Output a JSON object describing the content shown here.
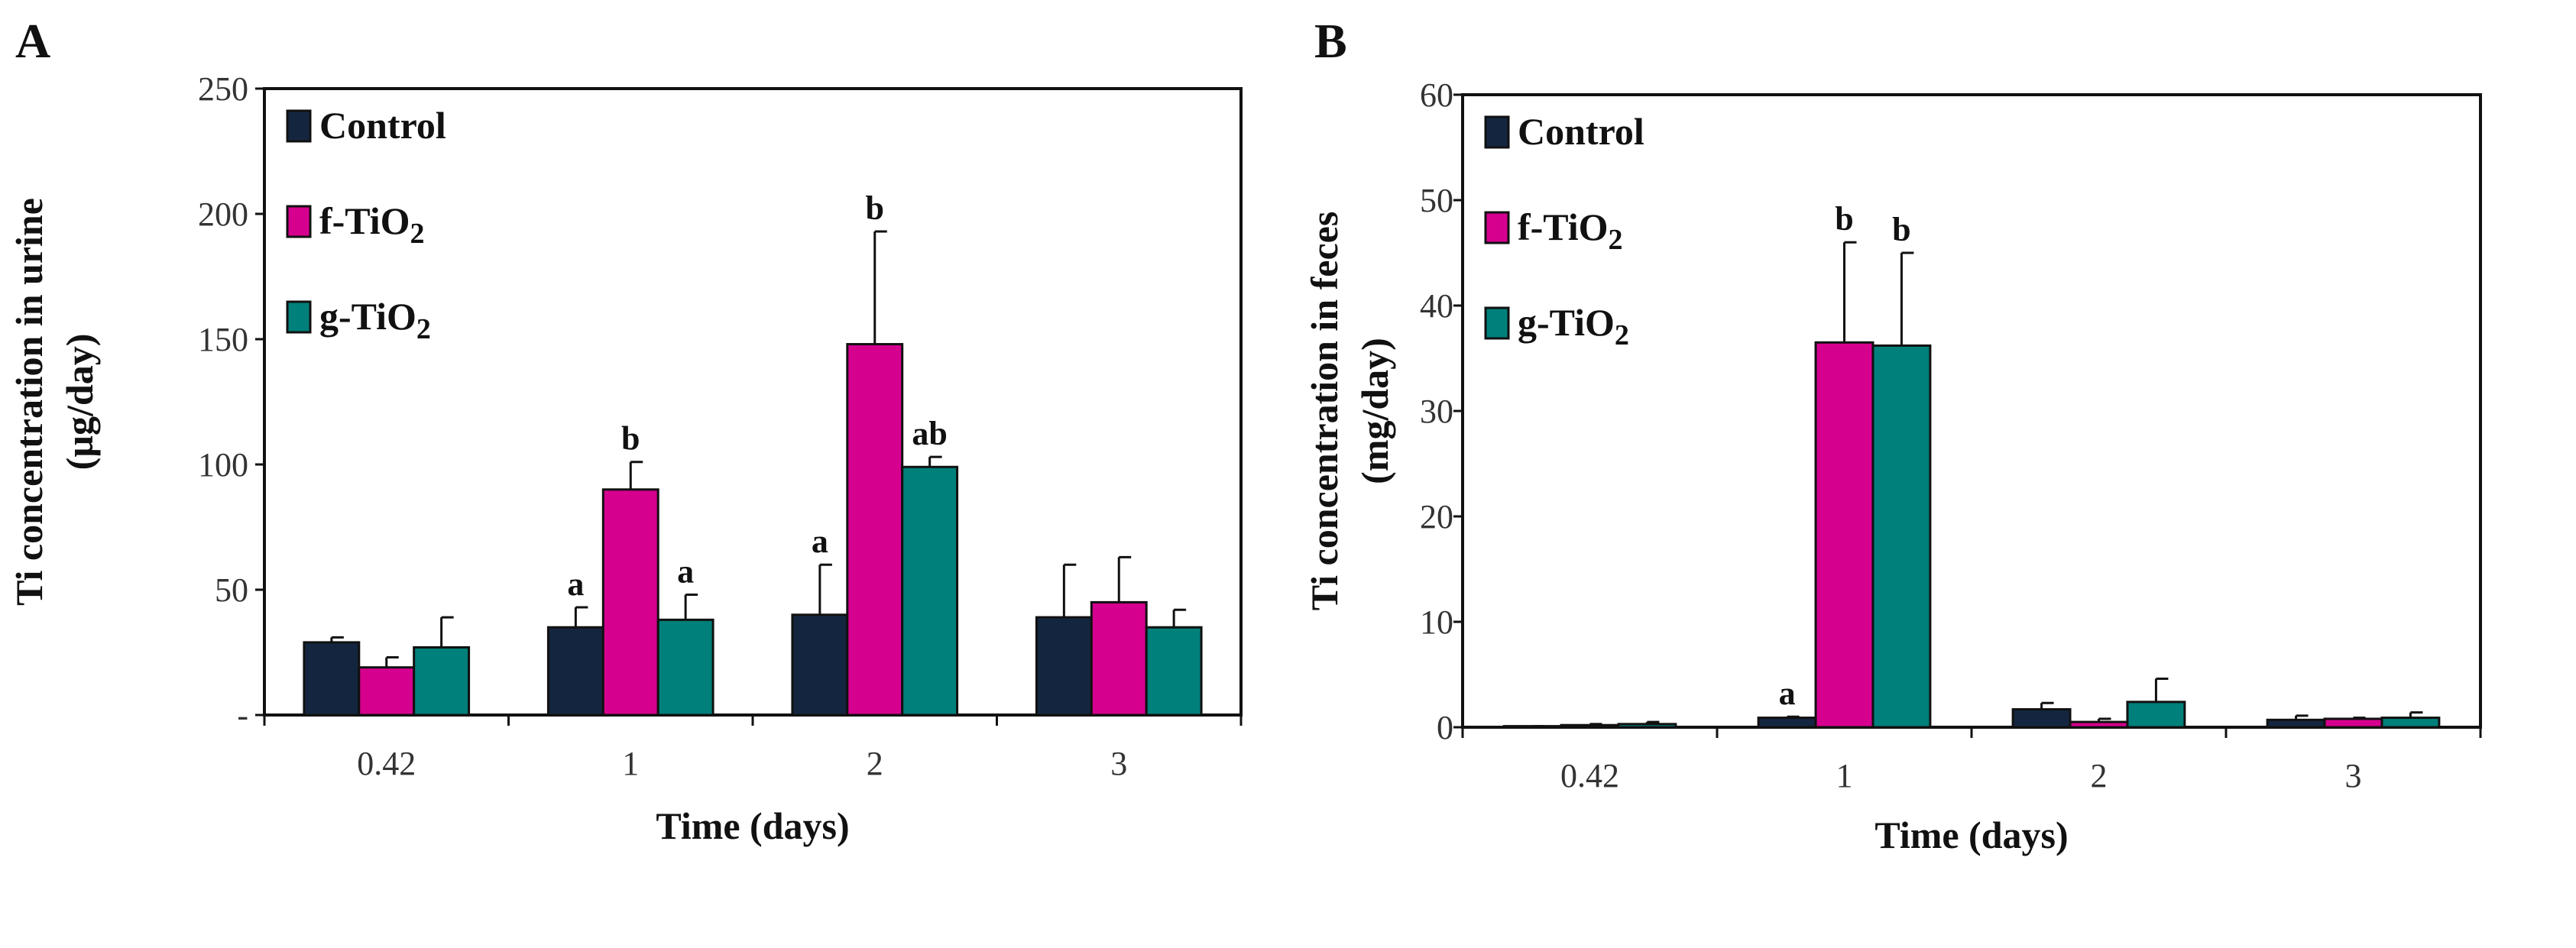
{
  "colors": {
    "Control": "#14263f",
    "f-TiO2": "#d6008f",
    "g-TiO2": "#00807a"
  },
  "chart_data": [
    {
      "type": "bar",
      "panel_label": "A",
      "title": "",
      "xlabel": "Time (days)",
      "ylabel": [
        "Ti concentration in urine",
        "(µg/day)"
      ],
      "ylim": [
        0,
        250
      ],
      "yticks": [
        0,
        50,
        100,
        150,
        200,
        250
      ],
      "ytick_labels": [
        "-",
        "50",
        "100",
        "150",
        "200",
        "250"
      ],
      "categories": [
        "0.42",
        "1",
        "2",
        "3"
      ],
      "legend": {
        "placement": "top-left",
        "entries": [
          {
            "name": "Control",
            "base": "Control",
            "sub": ""
          },
          {
            "name": "f-TiO2",
            "base": "f-TiO",
            "sub": "2"
          },
          {
            "name": "g-TiO2",
            "base": "g-TiO",
            "sub": "2"
          }
        ]
      },
      "series": [
        {
          "name": "Control",
          "values": [
            29,
            35,
            40,
            39
          ],
          "error_upper": [
            31,
            43,
            60,
            60
          ],
          "labels": [
            "",
            "a",
            "a",
            ""
          ]
        },
        {
          "name": "f-TiO2",
          "values": [
            19,
            90,
            148,
            45
          ],
          "error_upper": [
            23,
            101,
            193,
            63
          ],
          "labels": [
            "",
            "b",
            "b",
            ""
          ]
        },
        {
          "name": "g-TiO2",
          "values": [
            27,
            38,
            99,
            35
          ],
          "error_upper": [
            39,
            48,
            103,
            42
          ],
          "labels": [
            "",
            "a",
            "ab",
            ""
          ]
        }
      ]
    },
    {
      "type": "bar",
      "panel_label": "B",
      "title": "",
      "xlabel": "Time (days)",
      "ylabel": [
        "Ti concentration in feces",
        "(mg/day)"
      ],
      "ylim": [
        0,
        60
      ],
      "yticks": [
        0,
        10,
        20,
        30,
        40,
        50,
        60
      ],
      "ytick_labels": [
        "0",
        "10",
        "20",
        "30",
        "40",
        "50",
        "60"
      ],
      "categories": [
        "0.42",
        "1",
        "2",
        "3"
      ],
      "legend": {
        "placement": "top-left",
        "entries": [
          {
            "name": "Control",
            "base": "Control",
            "sub": ""
          },
          {
            "name": "f-TiO2",
            "base": "f-TiO",
            "sub": "2"
          },
          {
            "name": "g-TiO2",
            "base": "g-TiO",
            "sub": "2"
          }
        ]
      },
      "series": [
        {
          "name": "Control",
          "values": [
            0.1,
            0.9,
            1.7,
            0.7
          ],
          "error_upper": [
            0.1,
            1.0,
            2.3,
            1.1
          ],
          "labels": [
            "",
            "a",
            "",
            ""
          ]
        },
        {
          "name": "f-TiO2",
          "values": [
            0.2,
            36.5,
            0.5,
            0.8
          ],
          "error_upper": [
            0.3,
            46,
            0.8,
            0.9
          ],
          "labels": [
            "",
            "b",
            "",
            ""
          ]
        },
        {
          "name": "g-TiO2",
          "values": [
            0.3,
            36.2,
            2.4,
            0.9
          ],
          "error_upper": [
            0.5,
            45,
            4.6,
            1.4
          ],
          "labels": [
            "",
            "b",
            "",
            ""
          ]
        }
      ]
    }
  ]
}
